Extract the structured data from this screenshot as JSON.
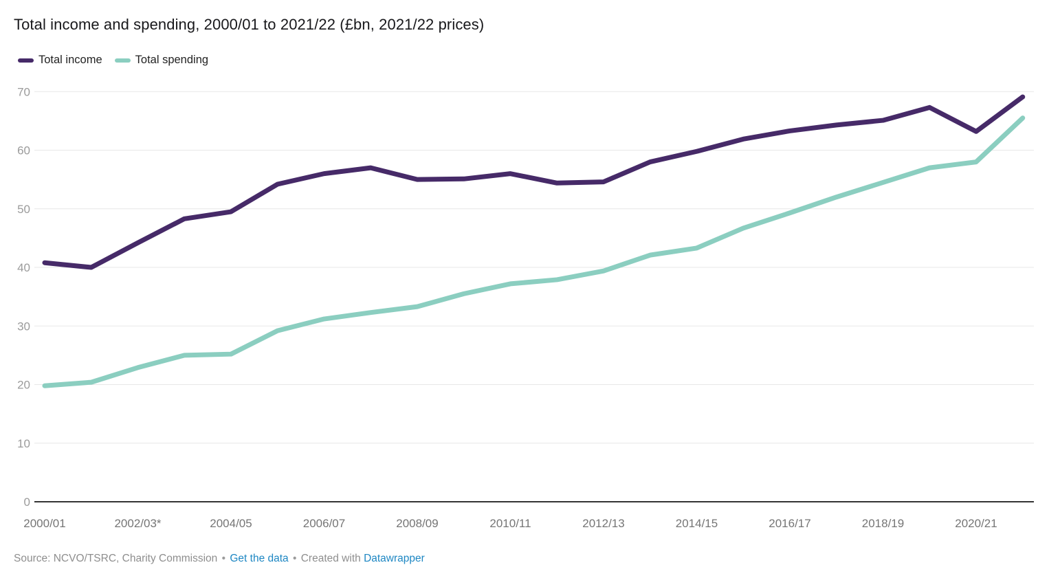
{
  "title": "Total income and spending, 2000/01 to 2021/22 (£bn, 2021/22 prices)",
  "legend": [
    {
      "label": "Total income",
      "color": "#462a68"
    },
    {
      "label": "Total spending",
      "color": "#8bcec0"
    }
  ],
  "footer": {
    "source_label": "Source:",
    "source": "NCVO/TSRC, Charity Commission",
    "separator": "•",
    "get_data_link": "Get the data",
    "created_with": "Created with",
    "tool_link": "Datawrapper"
  },
  "colors": {
    "income": "#462a68",
    "spending": "#8bcec0",
    "grid": "#e7e7e7",
    "axis": "#161616",
    "ytick": "#9b9b9b",
    "xtick": "#757575",
    "link": "#1e87c3"
  },
  "chart_data": {
    "type": "line",
    "title": "Total income and spending, 2000/01 to 2021/22 (£bn, 2021/22 prices)",
    "xlabel": "",
    "ylabel": "£bn (2021/22 prices)",
    "ylim": [
      0,
      70
    ],
    "yticks": [
      0,
      10,
      20,
      30,
      40,
      50,
      60,
      70
    ],
    "grid": "horizontal",
    "legend_position": "top-left",
    "x": [
      "2000/01",
      "2001/02",
      "2002/03*",
      "2003/04",
      "2004/05",
      "2005/06",
      "2006/07",
      "2007/08",
      "2008/09",
      "2009/10",
      "2010/11",
      "2011/12",
      "2012/13",
      "2013/14",
      "2014/15",
      "2015/16",
      "2016/17",
      "2017/18",
      "2018/19",
      "2019/20",
      "2020/21",
      "2021/22"
    ],
    "xtick_labels": [
      "2000/01",
      "2002/03*",
      "2004/05",
      "2006/07",
      "2008/09",
      "2010/11",
      "2012/13",
      "2014/15",
      "2016/17",
      "2018/19",
      "2020/21"
    ],
    "series": [
      {
        "name": "Total income",
        "color": "#462a68",
        "values": [
          40.8,
          40.0,
          44.2,
          48.3,
          49.5,
          54.2,
          56.0,
          57.0,
          55.0,
          55.1,
          56.0,
          54.4,
          54.6,
          58.0,
          59.8,
          61.9,
          63.3,
          64.3,
          65.1,
          67.3,
          63.2,
          69.1
        ]
      },
      {
        "name": "Total spending",
        "color": "#8bcec0",
        "values": [
          19.8,
          20.4,
          22.9,
          25.0,
          25.2,
          29.2,
          31.2,
          32.3,
          33.3,
          35.5,
          37.2,
          37.9,
          39.4,
          42.1,
          43.3,
          46.7,
          49.3,
          52.0,
          54.5,
          57.0,
          58.0,
          65.5
        ]
      }
    ]
  }
}
